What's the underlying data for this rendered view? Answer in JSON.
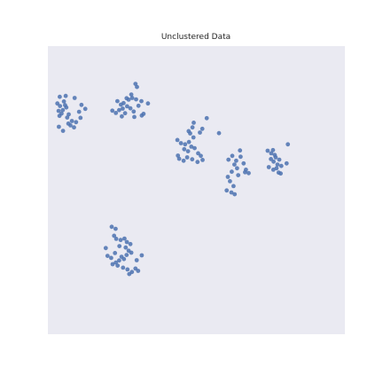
{
  "chart_data": {
    "type": "scatter",
    "title": "Unclustered Data",
    "xlabel": "",
    "ylabel": "",
    "xlim": [
      0,
      100
    ],
    "ylim": [
      0,
      100
    ],
    "grid": false,
    "axes_visible": false,
    "colors": {
      "background": "#eaeaf2",
      "point": "#4c72b0"
    },
    "points": [
      [
        3.2,
        80.1
      ],
      [
        4.1,
        79.2
      ],
      [
        3.6,
        77.5
      ],
      [
        5.0,
        77.8
      ],
      [
        4.6,
        76.6
      ],
      [
        3.9,
        75.8
      ],
      [
        5.8,
        79.5
      ],
      [
        6.2,
        78.7
      ],
      [
        5.4,
        80.8
      ],
      [
        7.0,
        76.3
      ],
      [
        6.5,
        75.2
      ],
      [
        8.1,
        74.0
      ],
      [
        9.5,
        73.6
      ],
      [
        7.6,
        72.5
      ],
      [
        8.8,
        71.8
      ],
      [
        6.9,
        73.1
      ],
      [
        12.6,
        78.2
      ],
      [
        11.3,
        79.6
      ],
      [
        10.5,
        77.2
      ],
      [
        5.1,
        70.6
      ],
      [
        3.7,
        72.0
      ],
      [
        9.0,
        82.0
      ],
      [
        6.0,
        82.7
      ],
      [
        4.0,
        82.4
      ],
      [
        11.0,
        75.1
      ],
      [
        23.4,
        80.9
      ],
      [
        24.6,
        79.7
      ],
      [
        25.5,
        80.2
      ],
      [
        26.7,
        79.1
      ],
      [
        25.2,
        78.3
      ],
      [
        24.0,
        77.8
      ],
      [
        27.2,
        81.4
      ],
      [
        28.4,
        82.0
      ],
      [
        29.7,
        81.5
      ],
      [
        30.5,
        79.3
      ],
      [
        27.8,
        78.4
      ],
      [
        28.9,
        77.3
      ],
      [
        26.0,
        76.7
      ],
      [
        21.7,
        77.6
      ],
      [
        22.9,
        76.8
      ],
      [
        29.1,
        75.4
      ],
      [
        31.6,
        75.9
      ],
      [
        32.2,
        76.5
      ],
      [
        29.5,
        86.9
      ],
      [
        30.0,
        85.8
      ],
      [
        31.5,
        80.9
      ],
      [
        33.7,
        80.1
      ],
      [
        28.1,
        83.2
      ],
      [
        26.5,
        81.9
      ],
      [
        24.9,
        75.6
      ],
      [
        43.6,
        67.4
      ],
      [
        44.8,
        66.3
      ],
      [
        46.2,
        65.9
      ],
      [
        47.5,
        66.7
      ],
      [
        48.3,
        65.1
      ],
      [
        45.9,
        64.2
      ],
      [
        47.2,
        63.5
      ],
      [
        49.4,
        64.6
      ],
      [
        50.6,
        62.8
      ],
      [
        49.0,
        68.3
      ],
      [
        47.9,
        69.7
      ],
      [
        48.7,
        71.8
      ],
      [
        49.1,
        73.4
      ],
      [
        51.2,
        70.0
      ],
      [
        52.0,
        71.3
      ],
      [
        47.4,
        70.5
      ],
      [
        44.2,
        60.9
      ],
      [
        45.7,
        60.2
      ],
      [
        46.9,
        61.4
      ],
      [
        48.6,
        60.7
      ],
      [
        50.4,
        59.8
      ],
      [
        52.1,
        60.5
      ],
      [
        51.5,
        61.9
      ],
      [
        43.8,
        62.0
      ],
      [
        53.5,
        75.0
      ],
      [
        57.6,
        69.8
      ],
      [
        60.8,
        60.6
      ],
      [
        62.1,
        61.9
      ],
      [
        63.4,
        60.2
      ],
      [
        64.9,
        61.6
      ],
      [
        62.8,
        58.9
      ],
      [
        65.9,
        59.3
      ],
      [
        66.7,
        57.1
      ],
      [
        63.7,
        57.6
      ],
      [
        61.9,
        56.4
      ],
      [
        60.6,
        54.6
      ],
      [
        64.1,
        55.2
      ],
      [
        61.3,
        53.1
      ],
      [
        62.5,
        51.4
      ],
      [
        60.2,
        49.9
      ],
      [
        61.8,
        49.2
      ],
      [
        62.9,
        48.6
      ],
      [
        66.4,
        56.2
      ],
      [
        67.6,
        55.9
      ],
      [
        64.7,
        63.8
      ],
      [
        74.0,
        63.7
      ],
      [
        75.2,
        62.8
      ],
      [
        76.4,
        62.2
      ],
      [
        75.8,
        63.9
      ],
      [
        76.7,
        61.4
      ],
      [
        75.1,
        60.8
      ],
      [
        76.0,
        59.9
      ],
      [
        77.3,
        58.9
      ],
      [
        78.6,
        58.4
      ],
      [
        77.0,
        57.6
      ],
      [
        75.9,
        57.1
      ],
      [
        77.7,
        56.1
      ],
      [
        78.4,
        55.8
      ],
      [
        80.4,
        59.3
      ],
      [
        80.8,
        65.9
      ],
      [
        74.4,
        58.0
      ],
      [
        77.9,
        60.6
      ],
      [
        21.5,
        37.3
      ],
      [
        22.8,
        36.6
      ],
      [
        22.3,
        34.2
      ],
      [
        23.0,
        33.1
      ],
      [
        24.5,
        32.7
      ],
      [
        25.8,
        33.2
      ],
      [
        26.6,
        32.0
      ],
      [
        27.8,
        31.3
      ],
      [
        26.2,
        30.1
      ],
      [
        27.2,
        29.0
      ],
      [
        28.1,
        28.3
      ],
      [
        26.5,
        27.5
      ],
      [
        24.8,
        26.9
      ],
      [
        25.6,
        26.1
      ],
      [
        24.0,
        25.6
      ],
      [
        22.9,
        24.9
      ],
      [
        21.8,
        24.3
      ],
      [
        23.5,
        23.8
      ],
      [
        25.3,
        23.1
      ],
      [
        26.8,
        22.5
      ],
      [
        28.3,
        21.6
      ],
      [
        29.5,
        22.8
      ],
      [
        30.4,
        22.0
      ],
      [
        27.4,
        20.9
      ],
      [
        20.1,
        27.2
      ],
      [
        21.3,
        26.5
      ],
      [
        22.6,
        28.2
      ],
      [
        19.5,
        29.9
      ],
      [
        24.1,
        30.6
      ],
      [
        29.9,
        25.7
      ],
      [
        31.6,
        27.4
      ]
    ]
  }
}
